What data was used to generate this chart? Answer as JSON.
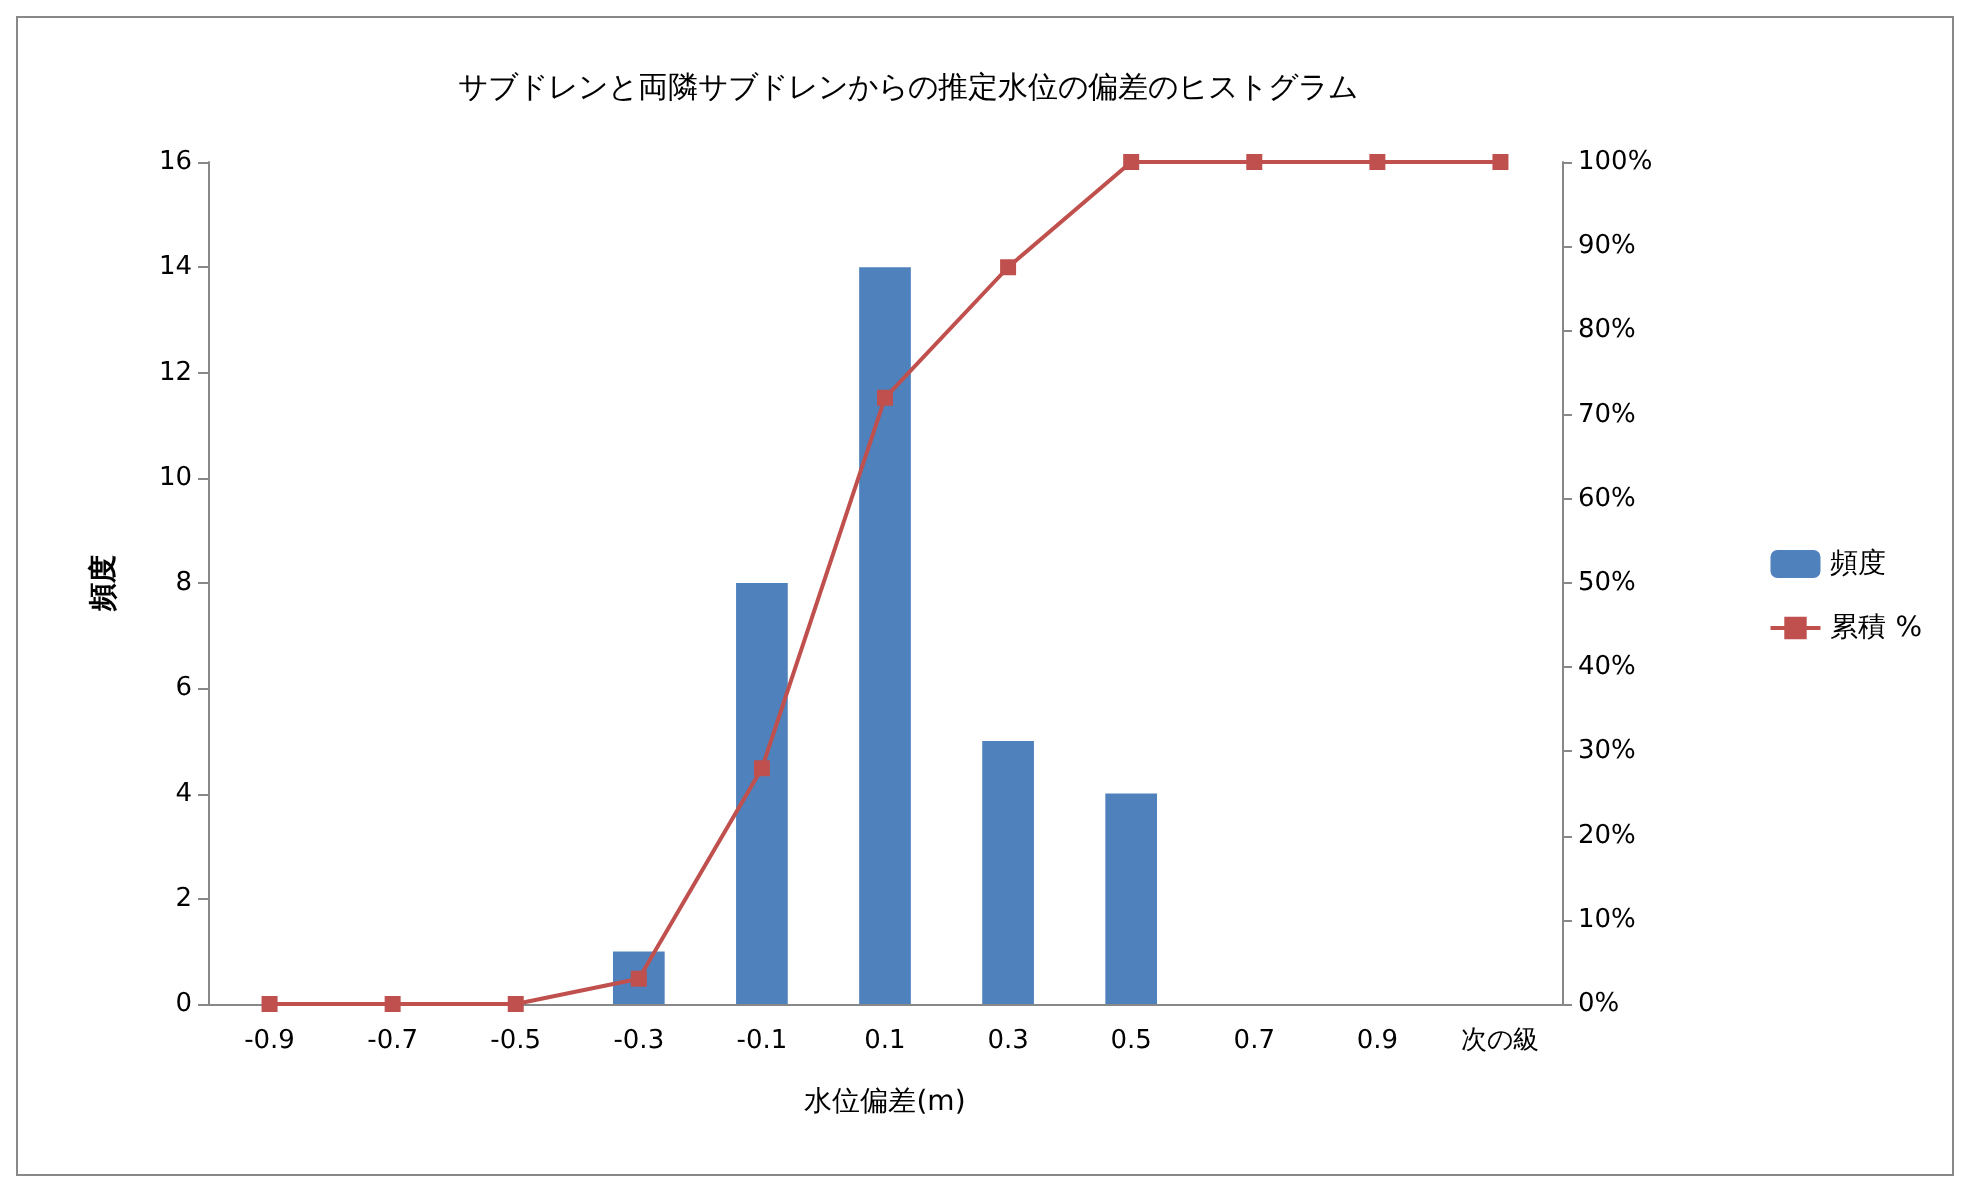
{
  "chart_data": {
    "type": "bar",
    "title": "サブドレンと両隣サブドレンからの推定水位の偏差のヒストグラム",
    "xlabel": "水位偏差(m)",
    "ylabel": "頻度",
    "categories": [
      "-0.9",
      "-0.7",
      "-0.5",
      "-0.3",
      "-0.1",
      "0.1",
      "0.3",
      "0.5",
      "0.7",
      "0.9",
      "次の級"
    ],
    "series": [
      {
        "name": "頻度",
        "color": "#4f81bd",
        "values": [
          0,
          0,
          0,
          1,
          8,
          14,
          5,
          4,
          0,
          0,
          0
        ]
      },
      {
        "name": "累積 %",
        "type": "line",
        "axis": "y2",
        "color": "#c0504d",
        "marker": "square",
        "values": [
          0,
          0,
          0,
          3,
          28,
          72,
          87.5,
          100,
          100,
          100,
          100
        ]
      }
    ],
    "ylim": [
      0,
      16
    ],
    "yticks": [
      0,
      2,
      4,
      6,
      8,
      10,
      12,
      14,
      16
    ],
    "y2lim": [
      0,
      100
    ],
    "y2ticks": [
      {
        "value": 0,
        "label": "0%"
      },
      {
        "value": 10,
        "label": "10%"
      },
      {
        "value": 20,
        "label": "20%"
      },
      {
        "value": 30,
        "label": "30%"
      },
      {
        "value": 40,
        "label": "40%"
      },
      {
        "value": 50,
        "label": "50%"
      },
      {
        "value": 60,
        "label": "60%"
      },
      {
        "value": 70,
        "label": "70%"
      },
      {
        "value": 80,
        "label": "80%"
      },
      {
        "value": 90,
        "label": "90%"
      },
      {
        "value": 100,
        "label": "100%"
      }
    ],
    "legend": "right"
  }
}
